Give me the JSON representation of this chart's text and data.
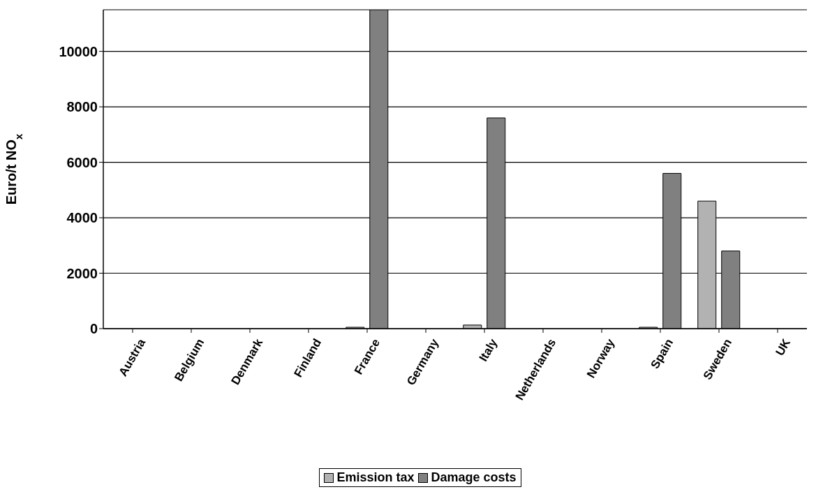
{
  "chart_data": {
    "type": "bar",
    "ylabel": "Euro/t NO$_{x}$",
    "categories": [
      "Austria",
      "Belgium",
      "Denmark",
      "Finland",
      "France",
      "Germany",
      "Italy",
      "Netherlands",
      "Norway",
      "Spain",
      "Sweden",
      "UK"
    ],
    "series": [
      {
        "name": "Emission tax",
        "color": "#b2b2b2",
        "values": [
          null,
          null,
          null,
          null,
          50,
          null,
          130,
          null,
          null,
          50,
          4600,
          null
        ]
      },
      {
        "name": "Damage costs",
        "color": "#808080",
        "values": [
          null,
          null,
          null,
          null,
          11500,
          null,
          7600,
          null,
          null,
          5600,
          2800,
          null
        ]
      }
    ],
    "ylim": [
      0,
      11500
    ],
    "yticks": [
      0,
      2000,
      4000,
      6000,
      8000,
      10000
    ],
    "grid": "y",
    "legend": "bottom"
  }
}
